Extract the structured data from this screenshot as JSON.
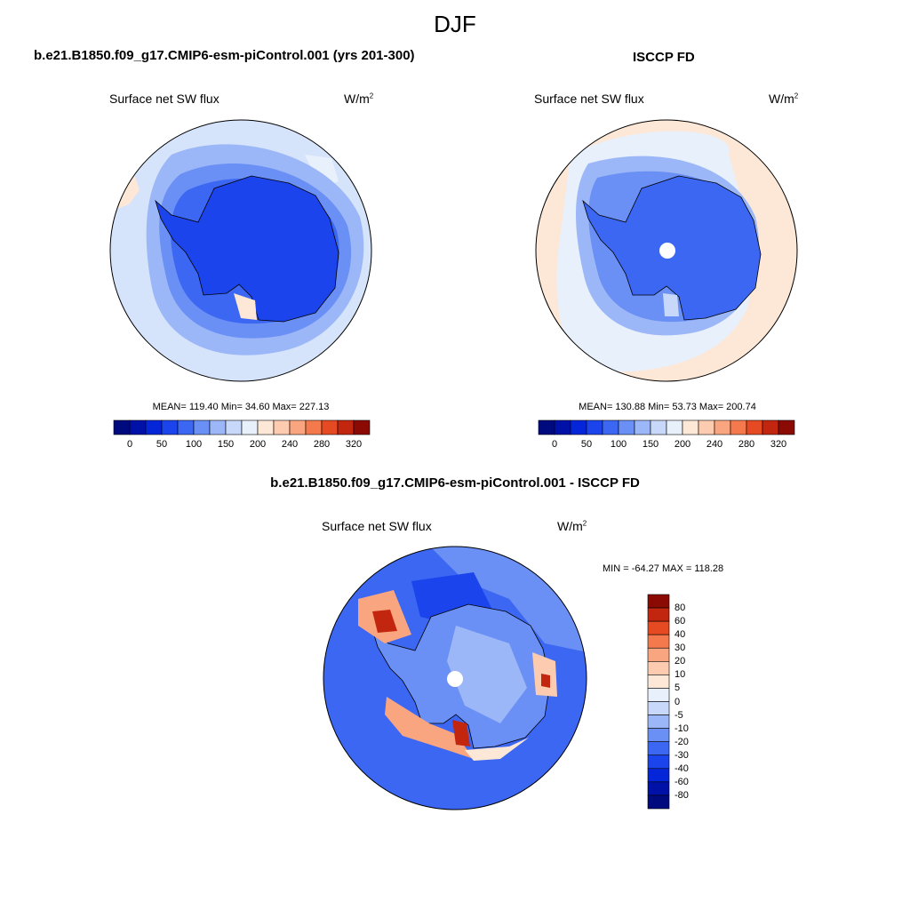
{
  "title": "DJF",
  "panels": [
    {
      "id": "model",
      "title": "b.e21.B1850.f09_g17.CMIP6-esm-piControl.001 (yrs 201-300)",
      "variable": "Surface net SW flux",
      "units_base": "W/m",
      "units_exp": "2",
      "stats": "MEAN= 119.40  Min=  34.60  Max= 227.13"
    },
    {
      "id": "obs",
      "title": "ISCCP FD",
      "variable": "Surface net SW flux",
      "units_base": "W/m",
      "units_exp": "2",
      "stats": "MEAN= 130.88  Min=  53.73  Max= 200.74"
    },
    {
      "id": "diff",
      "title": "b.e21.B1850.f09_g17.CMIP6-esm-piControl.001 - ISCCP FD",
      "variable": "Surface net SW flux",
      "units_base": "W/m",
      "units_exp": "2",
      "stats": "MIN = -64.27 MAX = 118.28"
    }
  ],
  "colorbar_abs": {
    "colors": [
      "#000a7f",
      "#0011a8",
      "#0525d8",
      "#1c44ec",
      "#3b67f2",
      "#6a8ff5",
      "#9cb7f7",
      "#c7d8fa",
      "#e8f0fc",
      "#fde7d6",
      "#fccbb0",
      "#f9a680",
      "#f47a4d",
      "#e54a22",
      "#c3260f",
      "#8c0a04"
    ],
    "tick_labels": [
      "0",
      "50",
      "100",
      "150",
      "200",
      "240",
      "280",
      "320"
    ]
  },
  "colorbar_diff": {
    "colors": [
      "#000a7f",
      "#0011a8",
      "#0525d8",
      "#1c44ec",
      "#3b67f2",
      "#6a8ff5",
      "#9cb7f7",
      "#c7d8fa",
      "#e8f0fc",
      "#fde7d6",
      "#fccbb0",
      "#f9a680",
      "#f47a4d",
      "#e54a22",
      "#c3260f",
      "#8c0a04"
    ],
    "tick_labels": [
      "80",
      "60",
      "40",
      "30",
      "20",
      "10",
      "5",
      "0",
      "-5",
      "-10",
      "-20",
      "-30",
      "-40",
      "-60",
      "-80"
    ]
  },
  "colors": {
    "ocean_light": "#d5e4fb",
    "ocean_mid": "#9cb7f7",
    "ice_ring": "#6a8ff5",
    "ice_mid": "#3b67f2",
    "continent": "#1c44ec",
    "warm": "#fde7d6",
    "diff_base": "#3b67f2"
  }
}
